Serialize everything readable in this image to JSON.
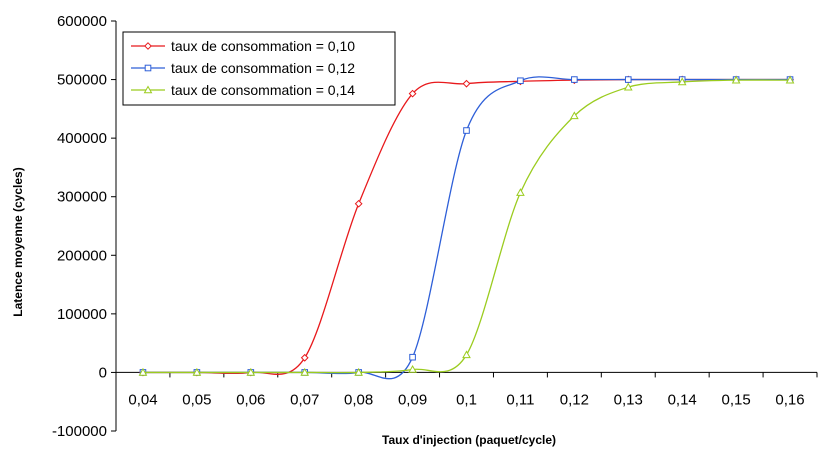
{
  "chart_data": {
    "type": "line",
    "title": "",
    "xlabel": "Taux d'injection (paquet/cycle)",
    "ylabel": "Latence moyenne (cycles)",
    "categories": [
      "0,04",
      "0,05",
      "0,06",
      "0,07",
      "0,08",
      "0,09",
      "0,1",
      "0,11",
      "0,12",
      "0,13",
      "0,14",
      "0,15",
      "0,16"
    ],
    "y_ticks": [
      "-100000",
      "0",
      "100000",
      "200000",
      "300000",
      "400000",
      "500000",
      "600000"
    ],
    "ylim": [
      -100000,
      600000
    ],
    "grid": false,
    "legend_position": "top-left",
    "series": [
      {
        "name": "taux de consommation = 0,10",
        "color": "#e8191c",
        "marker": "diamond",
        "values": [
          0,
          0,
          0,
          25000,
          288000,
          476000,
          493000,
          497000,
          499000,
          500000,
          500000,
          500000,
          500000
        ]
      },
      {
        "name": "taux de consommation = 0,12",
        "color": "#2e5fd8",
        "marker": "square",
        "values": [
          0,
          0,
          0,
          0,
          0,
          26000,
          413000,
          498000,
          500000,
          500000,
          500000,
          500000,
          500000
        ]
      },
      {
        "name": "taux de consommation = 0,14",
        "color": "#9bcc1f",
        "marker": "triangle",
        "values": [
          0,
          0,
          0,
          0,
          0,
          5000,
          30000,
          307000,
          438000,
          487000,
          496000,
          499000,
          499000
        ]
      }
    ]
  }
}
